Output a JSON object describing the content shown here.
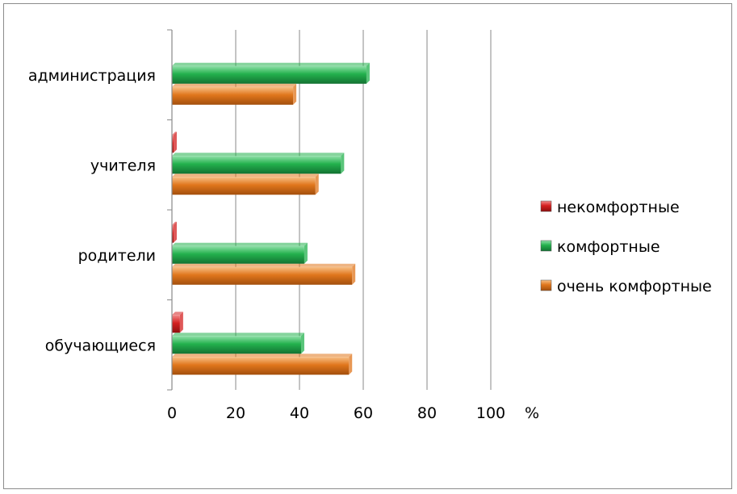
{
  "chart_data": {
    "type": "bar",
    "orientation": "horizontal",
    "categories": [
      "администрация",
      "учителя",
      "родители",
      "обучающиеся"
    ],
    "series": [
      {
        "name": "некомфортные",
        "values": [
          0,
          0.5,
          0.5,
          2.5
        ],
        "color": "#d42020"
      },
      {
        "name": "комфортные",
        "values": [
          61,
          53,
          41.5,
          40.5
        ],
        "color": "#23b14d"
      },
      {
        "name": "очень комфортные",
        "values": [
          38,
          45,
          56.5,
          55.5
        ],
        "color": "#e0761c"
      }
    ],
    "xlim": [
      0,
      100
    ],
    "xticks": [
      "0",
      "20",
      "40",
      "60",
      "80",
      "100"
    ],
    "unit_label": "%",
    "grid": "vertical",
    "legend_position": "right"
  }
}
